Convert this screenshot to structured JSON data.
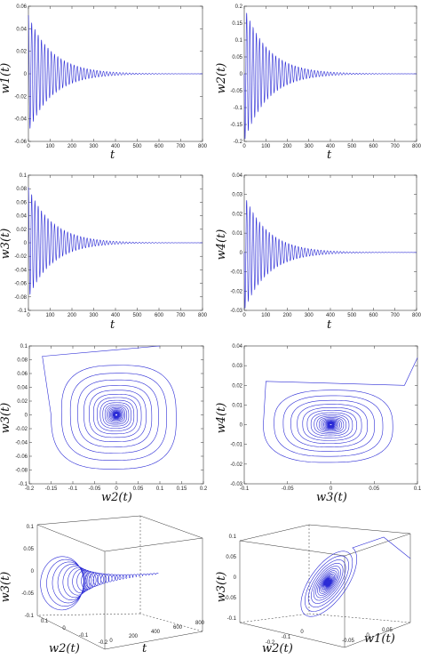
{
  "chart_data": [
    {
      "id": "w1",
      "type": "line",
      "xlabel": "t",
      "ylabel": "w1(t)",
      "xlim": [
        0,
        800
      ],
      "ylim": [
        -0.06,
        0.06
      ],
      "xticks": [
        "0",
        "100",
        "200",
        "300",
        "400",
        "500",
        "600",
        "700",
        "800"
      ],
      "yticks": [
        "-0.06",
        "-0.04",
        "-0.02",
        "0",
        "0.02",
        "0.04",
        "0.06"
      ],
      "series": [
        {
          "amplitude": 0.052,
          "period": 15,
          "decay_time": 110,
          "phase": 0.0,
          "t_end": 800
        }
      ]
    },
    {
      "id": "w2",
      "type": "line",
      "xlabel": "t",
      "ylabel": "w2(t)",
      "xlim": [
        0,
        800
      ],
      "ylim": [
        -0.2,
        0.2
      ],
      "xticks": [
        "0",
        "100",
        "200",
        "300",
        "400",
        "500",
        "600",
        "700",
        "800"
      ],
      "yticks": [
        "-0.2",
        "-0.15",
        "-0.1",
        "-0.05",
        "0",
        "0.05",
        "0.1",
        "0.15",
        "0.2"
      ],
      "series": [
        {
          "amplitude": 0.2,
          "period": 15,
          "decay_time": 110,
          "phase": 1.57,
          "t_end": 800
        }
      ]
    },
    {
      "id": "w3",
      "type": "line",
      "xlabel": "t",
      "ylabel": "w3(t)",
      "xlim": [
        0,
        800
      ],
      "ylim": [
        -0.1,
        0.1
      ],
      "xticks": [
        "0",
        "100",
        "200",
        "300",
        "400",
        "500",
        "600",
        "700",
        "800"
      ],
      "yticks": [
        "-0.1",
        "-0.08",
        "-0.06",
        "-0.04",
        "-0.02",
        "0",
        "0.02",
        "0.04",
        "0.06",
        "0.08",
        "0.1"
      ],
      "series": [
        {
          "amplitude": 0.082,
          "period": 15,
          "decay_time": 110,
          "phase": 0.0,
          "t_end": 800
        }
      ]
    },
    {
      "id": "w4",
      "type": "line",
      "xlabel": "t",
      "ylabel": "w4(t)",
      "xlim": [
        0,
        800
      ],
      "ylim": [
        -0.03,
        0.04
      ],
      "xticks": [
        "0",
        "100",
        "200",
        "300",
        "400",
        "500",
        "600",
        "700",
        "800"
      ],
      "yticks": [
        "-0.03",
        "-0.02",
        "-0.01",
        "0",
        "0.01",
        "0.02",
        "0.03",
        "0.04"
      ],
      "series": [
        {
          "amplitude": 0.03,
          "period": 15,
          "decay_time": 110,
          "phase": 1.57,
          "t_end": 800
        }
      ]
    },
    {
      "id": "phase_w2_w3",
      "type": "line",
      "xlabel": "w2(t)",
      "ylabel": "w3(t)",
      "xlim": [
        -0.2,
        0.2
      ],
      "ylim": [
        -0.1,
        0.1
      ],
      "xticks": [
        "-0.2",
        "-0.15",
        "-0.1",
        "-0.05",
        "0",
        "0.05",
        "0.1",
        "0.15",
        "0.2"
      ],
      "yticks": [
        "-0.1",
        "-0.08",
        "-0.06",
        "-0.04",
        "-0.02",
        "0",
        "0.02",
        "0.04",
        "0.06",
        "0.08",
        "0.1"
      ],
      "series": [
        {
          "start": [
            0.1,
            0.1
          ],
          "entry": [
            -0.17,
            0.085
          ],
          "ax": 0.15,
          "ay": 0.082,
          "turns": 24
        }
      ]
    },
    {
      "id": "phase_w3_w4",
      "type": "line",
      "xlabel": "w3(t)",
      "ylabel": "w4(t)",
      "xlim": [
        -0.1,
        0.1
      ],
      "ylim": [
        -0.03,
        0.04
      ],
      "xticks": [
        "-0.1",
        "-0.05",
        "0",
        "0.05",
        "0.1"
      ],
      "yticks": [
        "-0.03",
        "-0.02",
        "-0.01",
        "0",
        "0.01",
        "0.02",
        "0.03",
        "0.04"
      ],
      "series": [
        {
          "start": [
            0.1,
            0.034
          ],
          "via": [
            0.085,
            0.02
          ],
          "entry": [
            -0.075,
            0.022
          ],
          "ax": 0.078,
          "ay": 0.02,
          "turns": 24
        }
      ]
    },
    {
      "id": "phase3d_w2_t_w3",
      "type": "line",
      "xlabel": "w2(t)",
      "ylabel": "w3(t)",
      "zlabel": "t",
      "xticks": [
        "0.1",
        "0",
        "-0.1",
        "-0.2"
      ],
      "yticks": [
        "-0.1",
        "-0.05",
        "0",
        "0.05",
        "0.1"
      ],
      "tticks": [
        "0",
        "200",
        "400",
        "600",
        "800"
      ]
    },
    {
      "id": "phase3d_w2_w1_w3",
      "type": "line",
      "xlabel": "w2(t)",
      "ylabel": "w3(t)",
      "zlabel": "w1(t)",
      "xticks": [
        "0",
        "-0.1",
        "-0.2"
      ],
      "yticks": [
        "-0.1",
        "-0.05",
        "0",
        "0.05",
        "0.1"
      ],
      "w1ticks": [
        "-0.05",
        "0",
        "0.05"
      ]
    }
  ]
}
